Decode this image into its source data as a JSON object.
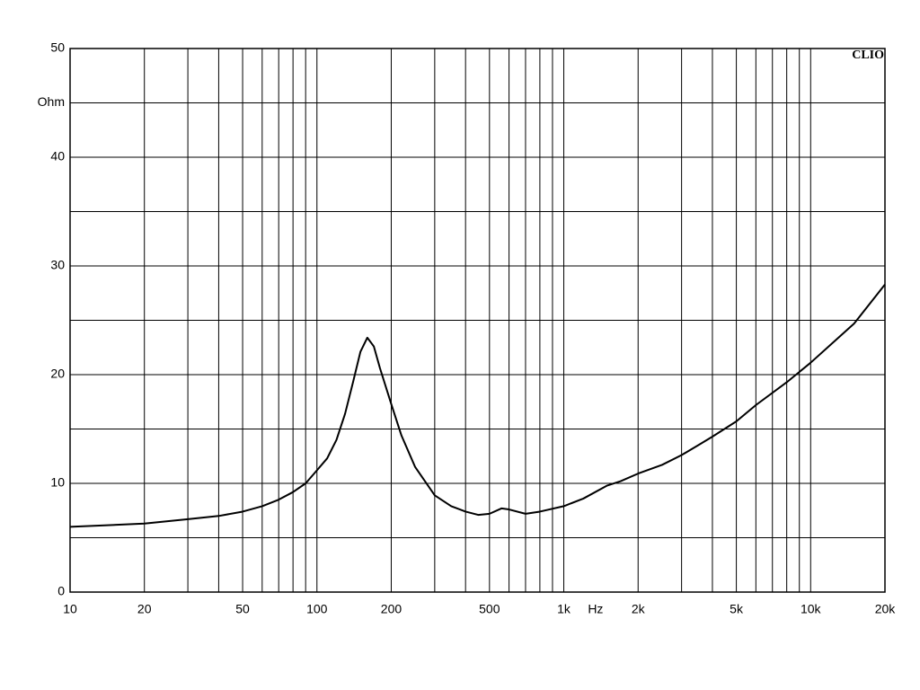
{
  "chart_data": {
    "type": "line",
    "logx": true,
    "grid": true,
    "watermark": "CLIO",
    "ylabel": "Ohm",
    "xlabel": "Hz",
    "x": [
      10,
      20,
      30,
      40,
      50,
      60,
      70,
      80,
      90,
      100,
      110,
      120,
      130,
      140,
      150,
      160,
      170,
      180,
      200,
      220,
      250,
      300,
      350,
      400,
      450,
      500,
      560,
      600,
      700,
      800,
      1000,
      1200,
      1500,
      1700,
      2000,
      2500,
      3000,
      3500,
      4000,
      5000,
      6000,
      8000,
      10000,
      15000,
      20000
    ],
    "series": [
      {
        "color": "#000000",
        "values": [
          6.0,
          6.3,
          6.7,
          7.0,
          7.4,
          7.9,
          8.5,
          9.2,
          10.0,
          11.2,
          12.3,
          14.0,
          16.4,
          19.3,
          22.1,
          23.4,
          22.6,
          20.6,
          17.3,
          14.4,
          11.5,
          8.9,
          7.9,
          7.4,
          7.1,
          7.2,
          7.7,
          7.6,
          7.2,
          7.4,
          7.9,
          8.6,
          9.8,
          10.2,
          10.9,
          11.7,
          12.6,
          13.5,
          14.3,
          15.7,
          17.2,
          19.3,
          21.1,
          24.7,
          28.3
        ]
      }
    ],
    "xlim": [
      10,
      20000
    ],
    "xticks": [
      10,
      20,
      50,
      100,
      200,
      500,
      {
        "value": 1000,
        "label": "1k"
      },
      {
        "value": 2000,
        "label": "2k"
      },
      {
        "value": 5000,
        "label": "5k"
      },
      {
        "value": 10000,
        "label": "10k"
      },
      {
        "value": 20000,
        "label": "20k"
      }
    ],
    "xminor": [
      30,
      40,
      60,
      70,
      80,
      90,
      300,
      400,
      600,
      700,
      800,
      900,
      3000,
      4000,
      6000,
      7000,
      8000,
      9000
    ],
    "ylim": [
      0,
      50
    ],
    "yticks": [
      0,
      10,
      20,
      30,
      40,
      50
    ],
    "yminor": [
      5,
      15,
      25,
      35,
      45
    ]
  }
}
